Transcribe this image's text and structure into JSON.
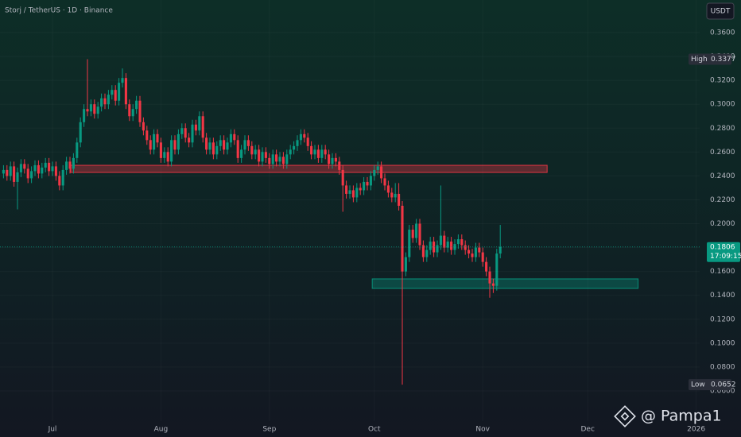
{
  "chart_data": {
    "type": "candlestick",
    "title": "Storj / TetherUS · 1D · Binance",
    "currency": "USDT",
    "ylim": [
      0.0347,
      0.3873
    ],
    "yticks": [
      {
        "value": 0.06,
        "label": "0.0600"
      },
      {
        "value": 0.08,
        "label": "0.0800"
      },
      {
        "value": 0.1,
        "label": "0.1000"
      },
      {
        "value": 0.12,
        "label": "0.1200"
      },
      {
        "value": 0.14,
        "label": "0.1400"
      },
      {
        "value": 0.16,
        "label": "0.1600"
      },
      {
        "value": 0.18,
        "label": "0.1800"
      },
      {
        "value": 0.2,
        "label": "0.2000"
      },
      {
        "value": 0.22,
        "label": "0.2200"
      },
      {
        "value": 0.24,
        "label": "0.2400"
      },
      {
        "value": 0.26,
        "label": "0.2600"
      },
      {
        "value": 0.28,
        "label": "0.2800"
      },
      {
        "value": 0.3,
        "label": "0.3000"
      },
      {
        "value": 0.32,
        "label": "0.3200"
      },
      {
        "value": 0.34,
        "label": "0.3400"
      },
      {
        "value": 0.36,
        "label": "0.3600"
      }
    ],
    "xlim": [
      -1,
      199
    ],
    "xticks": [
      {
        "value": 14,
        "label": "Jul"
      },
      {
        "value": 45,
        "label": "Aug"
      },
      {
        "value": 76,
        "label": "Sep"
      },
      {
        "value": 106,
        "label": "Oct"
      },
      {
        "value": 137,
        "label": "Nov"
      },
      {
        "value": 167,
        "label": "Dec"
      },
      {
        "value": 198,
        "label": "2026"
      }
    ],
    "up_color": "#089981",
    "down_color": "#f23645",
    "ohlc": [
      [
        0.242,
        0.249,
        0.238,
        0.245
      ],
      [
        0.245,
        0.249,
        0.236,
        0.24
      ],
      [
        0.24,
        0.252,
        0.236,
        0.248
      ],
      [
        0.248,
        0.252,
        0.231,
        0.235
      ],
      [
        0.235,
        0.247,
        0.212,
        0.243
      ],
      [
        0.243,
        0.254,
        0.239,
        0.25
      ],
      [
        0.25,
        0.254,
        0.242,
        0.246
      ],
      [
        0.246,
        0.25,
        0.234,
        0.238
      ],
      [
        0.238,
        0.248,
        0.234,
        0.244
      ],
      [
        0.244,
        0.253,
        0.24,
        0.249
      ],
      [
        0.249,
        0.253,
        0.238,
        0.242
      ],
      [
        0.242,
        0.251,
        0.238,
        0.247
      ],
      [
        0.247,
        0.255,
        0.243,
        0.251
      ],
      [
        0.251,
        0.255,
        0.24,
        0.244
      ],
      [
        0.244,
        0.252,
        0.24,
        0.248
      ],
      [
        0.248,
        0.252,
        0.236,
        0.24
      ],
      [
        0.24,
        0.244,
        0.228,
        0.232
      ],
      [
        0.232,
        0.249,
        0.228,
        0.245
      ],
      [
        0.245,
        0.256,
        0.241,
        0.252
      ],
      [
        0.252,
        0.256,
        0.242,
        0.246
      ],
      [
        0.246,
        0.259,
        0.242,
        0.255
      ],
      [
        0.255,
        0.272,
        0.251,
        0.268
      ],
      [
        0.268,
        0.289,
        0.264,
        0.285
      ],
      [
        0.285,
        0.3,
        0.281,
        0.296
      ],
      [
        0.296,
        0.3377,
        0.29,
        0.294
      ],
      [
        0.294,
        0.304,
        0.29,
        0.3
      ],
      [
        0.3,
        0.304,
        0.288,
        0.292
      ],
      [
        0.292,
        0.302,
        0.288,
        0.298
      ],
      [
        0.298,
        0.309,
        0.294,
        0.305
      ],
      [
        0.305,
        0.309,
        0.296,
        0.3
      ],
      [
        0.3,
        0.312,
        0.296,
        0.308
      ],
      [
        0.308,
        0.316,
        0.304,
        0.312
      ],
      [
        0.312,
        0.316,
        0.299,
        0.303
      ],
      [
        0.303,
        0.322,
        0.299,
        0.318
      ],
      [
        0.318,
        0.33,
        0.314,
        0.322
      ],
      [
        0.322,
        0.326,
        0.296,
        0.3
      ],
      [
        0.3,
        0.304,
        0.286,
        0.29
      ],
      [
        0.29,
        0.3,
        0.286,
        0.296
      ],
      [
        0.296,
        0.307,
        0.292,
        0.303
      ],
      [
        0.303,
        0.307,
        0.281,
        0.285
      ],
      [
        0.285,
        0.289,
        0.274,
        0.278
      ],
      [
        0.278,
        0.282,
        0.266,
        0.27
      ],
      [
        0.27,
        0.274,
        0.258,
        0.262
      ],
      [
        0.262,
        0.279,
        0.258,
        0.275
      ],
      [
        0.275,
        0.279,
        0.264,
        0.268
      ],
      [
        0.268,
        0.272,
        0.251,
        0.255
      ],
      [
        0.255,
        0.264,
        0.251,
        0.26
      ],
      [
        0.26,
        0.264,
        0.248,
        0.252
      ],
      [
        0.252,
        0.274,
        0.248,
        0.27
      ],
      [
        0.27,
        0.274,
        0.258,
        0.262
      ],
      [
        0.262,
        0.279,
        0.258,
        0.275
      ],
      [
        0.275,
        0.284,
        0.271,
        0.28
      ],
      [
        0.28,
        0.284,
        0.268,
        0.272
      ],
      [
        0.272,
        0.276,
        0.264,
        0.268
      ],
      [
        0.268,
        0.287,
        0.264,
        0.283
      ],
      [
        0.283,
        0.287,
        0.274,
        0.278
      ],
      [
        0.278,
        0.294,
        0.274,
        0.29
      ],
      [
        0.29,
        0.294,
        0.268,
        0.272
      ],
      [
        0.272,
        0.276,
        0.258,
        0.262
      ],
      [
        0.262,
        0.272,
        0.258,
        0.268
      ],
      [
        0.268,
        0.272,
        0.254,
        0.258
      ],
      [
        0.258,
        0.269,
        0.254,
        0.265
      ],
      [
        0.265,
        0.274,
        0.261,
        0.27
      ],
      [
        0.27,
        0.274,
        0.258,
        0.262
      ],
      [
        0.262,
        0.272,
        0.258,
        0.268
      ],
      [
        0.268,
        0.279,
        0.264,
        0.275
      ],
      [
        0.275,
        0.279,
        0.266,
        0.27
      ],
      [
        0.27,
        0.274,
        0.251,
        0.255
      ],
      [
        0.255,
        0.266,
        0.251,
        0.262
      ],
      [
        0.262,
        0.274,
        0.258,
        0.27
      ],
      [
        0.27,
        0.274,
        0.261,
        0.265
      ],
      [
        0.265,
        0.269,
        0.254,
        0.258
      ],
      [
        0.258,
        0.266,
        0.254,
        0.262
      ],
      [
        0.262,
        0.266,
        0.248,
        0.252
      ],
      [
        0.252,
        0.264,
        0.248,
        0.26
      ],
      [
        0.26,
        0.264,
        0.251,
        0.255
      ],
      [
        0.255,
        0.259,
        0.246,
        0.25
      ],
      [
        0.25,
        0.262,
        0.246,
        0.258
      ],
      [
        0.258,
        0.262,
        0.248,
        0.252
      ],
      [
        0.252,
        0.26,
        0.248,
        0.256
      ],
      [
        0.256,
        0.26,
        0.246,
        0.25
      ],
      [
        0.25,
        0.262,
        0.246,
        0.258
      ],
      [
        0.258,
        0.266,
        0.254,
        0.262
      ],
      [
        0.262,
        0.269,
        0.258,
        0.265
      ],
      [
        0.265,
        0.274,
        0.261,
        0.27
      ],
      [
        0.27,
        0.279,
        0.266,
        0.275
      ],
      [
        0.275,
        0.279,
        0.268,
        0.272
      ],
      [
        0.272,
        0.276,
        0.261,
        0.265
      ],
      [
        0.265,
        0.269,
        0.254,
        0.258
      ],
      [
        0.258,
        0.266,
        0.254,
        0.262
      ],
      [
        0.262,
        0.266,
        0.251,
        0.255
      ],
      [
        0.255,
        0.266,
        0.251,
        0.262
      ],
      [
        0.262,
        0.266,
        0.254,
        0.258
      ],
      [
        0.258,
        0.262,
        0.246,
        0.25
      ],
      [
        0.25,
        0.259,
        0.246,
        0.255
      ],
      [
        0.255,
        0.259,
        0.248,
        0.252
      ],
      [
        0.252,
        0.256,
        0.241,
        0.245
      ],
      [
        0.245,
        0.249,
        0.21,
        0.232
      ],
      [
        0.232,
        0.236,
        0.221,
        0.225
      ],
      [
        0.225,
        0.232,
        0.221,
        0.228
      ],
      [
        0.228,
        0.232,
        0.218,
        0.222
      ],
      [
        0.222,
        0.234,
        0.218,
        0.23
      ],
      [
        0.23,
        0.234,
        0.224,
        0.228
      ],
      [
        0.228,
        0.239,
        0.224,
        0.235
      ],
      [
        0.235,
        0.239,
        0.228,
        0.232
      ],
      [
        0.232,
        0.244,
        0.228,
        0.24
      ],
      [
        0.24,
        0.249,
        0.236,
        0.245
      ],
      [
        0.245,
        0.252,
        0.241,
        0.248
      ],
      [
        0.248,
        0.252,
        0.234,
        0.238
      ],
      [
        0.238,
        0.242,
        0.228,
        0.232
      ],
      [
        0.232,
        0.236,
        0.222,
        0.226
      ],
      [
        0.226,
        0.23,
        0.218,
        0.222
      ],
      [
        0.222,
        0.234,
        0.218,
        0.225
      ],
      [
        0.225,
        0.234,
        0.211,
        0.215
      ],
      [
        0.215,
        0.219,
        0.0652,
        0.16
      ],
      [
        0.16,
        0.176,
        0.156,
        0.172
      ],
      [
        0.172,
        0.199,
        0.168,
        0.195
      ],
      [
        0.195,
        0.199,
        0.184,
        0.188
      ],
      [
        0.188,
        0.204,
        0.184,
        0.2
      ],
      [
        0.2,
        0.204,
        0.178,
        0.182
      ],
      [
        0.182,
        0.186,
        0.168,
        0.172
      ],
      [
        0.172,
        0.182,
        0.168,
        0.178
      ],
      [
        0.178,
        0.189,
        0.174,
        0.185
      ],
      [
        0.185,
        0.189,
        0.172,
        0.176
      ],
      [
        0.176,
        0.186,
        0.172,
        0.182
      ],
      [
        0.182,
        0.232,
        0.178,
        0.19
      ],
      [
        0.19,
        0.194,
        0.176,
        0.18
      ],
      [
        0.18,
        0.189,
        0.176,
        0.185
      ],
      [
        0.185,
        0.189,
        0.174,
        0.178
      ],
      [
        0.178,
        0.187,
        0.174,
        0.183
      ],
      [
        0.183,
        0.191,
        0.179,
        0.187
      ],
      [
        0.187,
        0.191,
        0.178,
        0.182
      ],
      [
        0.182,
        0.186,
        0.174,
        0.178
      ],
      [
        0.178,
        0.182,
        0.171,
        0.175
      ],
      [
        0.175,
        0.179,
        0.168,
        0.172
      ],
      [
        0.172,
        0.184,
        0.168,
        0.18
      ],
      [
        0.18,
        0.184,
        0.172,
        0.176
      ],
      [
        0.176,
        0.18,
        0.164,
        0.168
      ],
      [
        0.168,
        0.172,
        0.156,
        0.16
      ],
      [
        0.16,
        0.164,
        0.138,
        0.15
      ],
      [
        0.15,
        0.154,
        0.142,
        0.148
      ],
      [
        0.148,
        0.179,
        0.144,
        0.175
      ],
      [
        0.175,
        0.199,
        0.171,
        0.1806
      ]
    ],
    "zones": [
      {
        "x0": 19.2,
        "x1": 155.4,
        "y0": 0.2429,
        "y1": 0.2489,
        "color": "#f23645"
      },
      {
        "x0": 105.4,
        "x1": 181.4,
        "y0": 0.1458,
        "y1": 0.1538,
        "color": "#089981"
      }
    ],
    "last_price": 0.1806,
    "countdown": "17:09:15",
    "high": {
      "label": "High",
      "value": 0.3377
    },
    "low": {
      "label": "Low",
      "value": 0.0652
    },
    "watermark": "@ Pampa1"
  }
}
